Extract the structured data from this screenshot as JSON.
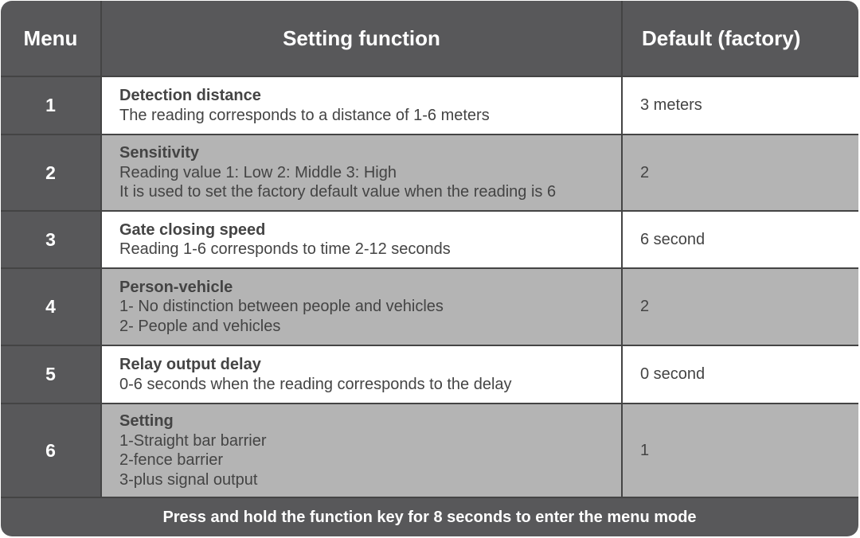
{
  "header": {
    "menu": "Menu",
    "function": "Setting function",
    "default": "Default  (factory)"
  },
  "rows": [
    {
      "menu": "1",
      "title": "Detection  distance",
      "lines": [
        "The  reading  corresponds to a distance of 1-6 meters"
      ],
      "default": "3 meters"
    },
    {
      "menu": "2",
      "title": "Sensitivity",
      "lines": [
        "Reading value 1: Low    2: Middle    3: High",
        "It is used to set the factory default value when the reading is 6"
      ],
      "default": "2"
    },
    {
      "menu": "3",
      "title": "Gate closing speed",
      "lines": [
        "Reading 1-6 corresponds to time 2-12 seconds"
      ],
      "default": "6 second"
    },
    {
      "menu": "4",
      "title": "Person-vehicle",
      "lines": [
        "1- No distinction between people and vehicles",
        "2- People and vehicles"
      ],
      "default": "2"
    },
    {
      "menu": "5",
      "title": "Relay output delay",
      "lines": [
        "0-6 seconds when the reading corresponds to the delay"
      ],
      "default": "0  second"
    },
    {
      "menu": "6",
      "title": "Setting",
      "lines": [
        "1-Straight bar barrier",
        "2-fence barrier",
        "3-plus signal output"
      ],
      "default": "1"
    }
  ],
  "footer": "Press and hold the function key for 8 seconds to enter the menu mode",
  "colors": {
    "dark": "#58585a",
    "light_row": "#ffffff",
    "gray_row": "#b4b4b4"
  }
}
